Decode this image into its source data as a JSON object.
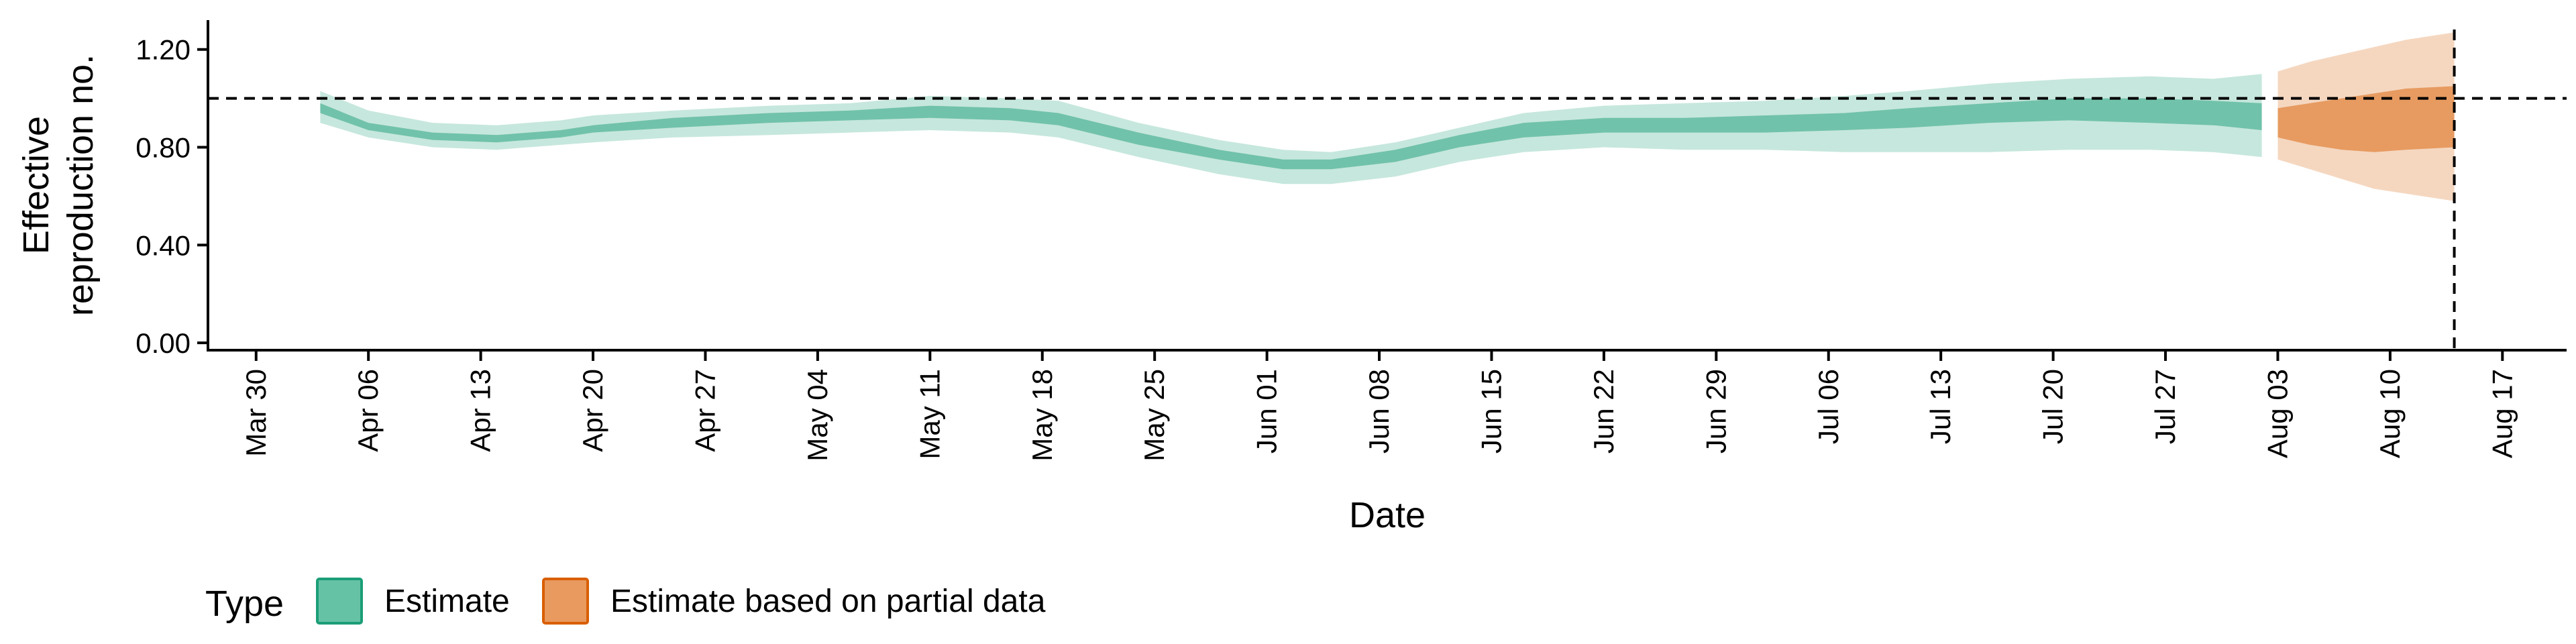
{
  "chart_data": {
    "type": "area",
    "xlabel": "Date",
    "ylabel_lines": [
      "Effective",
      "reproduction no."
    ],
    "xlim": [
      "2020-03-27",
      "2020-08-21"
    ],
    "ylim": [
      -0.03,
      1.32
    ],
    "yticks": [
      0.0,
      0.4,
      0.8,
      1.2
    ],
    "ytick_labels": [
      "0.00",
      "0.40",
      "0.80",
      "1.20"
    ],
    "xticks": [
      "2020-03-30",
      "2020-04-06",
      "2020-04-13",
      "2020-04-20",
      "2020-04-27",
      "2020-05-04",
      "2020-05-11",
      "2020-05-18",
      "2020-05-25",
      "2020-06-01",
      "2020-06-08",
      "2020-06-15",
      "2020-06-22",
      "2020-06-29",
      "2020-07-06",
      "2020-07-13",
      "2020-07-20",
      "2020-07-27",
      "2020-08-03",
      "2020-08-10",
      "2020-08-17"
    ],
    "xtick_labels": [
      "Mar 30",
      "Apr 06",
      "Apr 13",
      "Apr 20",
      "Apr 27",
      "May 04",
      "May 11",
      "May 18",
      "May 25",
      "Jun 01",
      "Jun 08",
      "Jun 15",
      "Jun 22",
      "Jun 29",
      "Jul 06",
      "Jul 13",
      "Jul 20",
      "Jul 27",
      "Aug 03",
      "Aug 10",
      "Aug 17"
    ],
    "reference_line_y": 1.0,
    "reference_line_x": "2020-08-14",
    "grid": false,
    "legend": {
      "position": "bottom-left",
      "title": "Type",
      "entries": [
        {
          "label": "Estimate",
          "fill": "#66c2a5",
          "stroke": "#1b9e77"
        },
        {
          "label": "Estimate based on partial data",
          "fill": "#e89a5f",
          "stroke": "#d95f02"
        }
      ]
    },
    "series": [
      {
        "name": "Estimate",
        "outer_color": "#1b9e77",
        "inner_color": "#1b9e77",
        "x": [
          "2020-04-03",
          "2020-04-06",
          "2020-04-10",
          "2020-04-14",
          "2020-04-18",
          "2020-04-20",
          "2020-04-25",
          "2020-05-01",
          "2020-05-06",
          "2020-05-11",
          "2020-05-16",
          "2020-05-19",
          "2020-05-24",
          "2020-05-29",
          "2020-06-02",
          "2020-06-05",
          "2020-06-09",
          "2020-06-13",
          "2020-06-17",
          "2020-06-22",
          "2020-06-27",
          "2020-07-02",
          "2020-07-07",
          "2020-07-11",
          "2020-07-16",
          "2020-07-21",
          "2020-07-26",
          "2020-07-30",
          "2020-08-02"
        ],
        "lower_90": [
          0.9,
          0.84,
          0.8,
          0.79,
          0.81,
          0.82,
          0.84,
          0.85,
          0.86,
          0.87,
          0.86,
          0.84,
          0.76,
          0.69,
          0.65,
          0.65,
          0.68,
          0.74,
          0.78,
          0.8,
          0.79,
          0.79,
          0.78,
          0.78,
          0.78,
          0.79,
          0.79,
          0.78,
          0.76
        ],
        "lower_50": [
          0.94,
          0.87,
          0.83,
          0.82,
          0.84,
          0.86,
          0.88,
          0.9,
          0.91,
          0.92,
          0.91,
          0.89,
          0.81,
          0.75,
          0.71,
          0.71,
          0.74,
          0.8,
          0.84,
          0.86,
          0.86,
          0.86,
          0.87,
          0.88,
          0.9,
          0.91,
          0.9,
          0.89,
          0.87
        ],
        "median": [
          0.96,
          0.88,
          0.84,
          0.83,
          0.85,
          0.87,
          0.9,
          0.92,
          0.93,
          0.95,
          0.94,
          0.92,
          0.83,
          0.77,
          0.73,
          0.72,
          0.76,
          0.82,
          0.87,
          0.89,
          0.89,
          0.89,
          0.9,
          0.92,
          0.94,
          0.95,
          0.95,
          0.93,
          0.92
        ],
        "upper_50": [
          0.98,
          0.9,
          0.86,
          0.85,
          0.87,
          0.89,
          0.92,
          0.94,
          0.95,
          0.97,
          0.96,
          0.94,
          0.86,
          0.79,
          0.75,
          0.75,
          0.79,
          0.85,
          0.9,
          0.92,
          0.92,
          0.93,
          0.94,
          0.96,
          0.98,
          1.0,
          1.0,
          0.99,
          0.98
        ],
        "upper_90": [
          1.03,
          0.95,
          0.9,
          0.89,
          0.91,
          0.93,
          0.95,
          0.97,
          0.98,
          1.01,
          1.0,
          0.99,
          0.9,
          0.83,
          0.79,
          0.78,
          0.82,
          0.88,
          0.94,
          0.97,
          0.98,
          0.99,
          1.01,
          1.03,
          1.06,
          1.08,
          1.09,
          1.08,
          1.1
        ]
      },
      {
        "name": "Estimate based on partial data",
        "outer_color": "#d95f02",
        "inner_color": "#d95f02",
        "x": [
          "2020-08-03",
          "2020-08-05",
          "2020-08-07",
          "2020-08-09",
          "2020-08-11",
          "2020-08-14"
        ],
        "lower_90": [
          0.75,
          0.71,
          0.67,
          0.63,
          0.61,
          0.58
        ],
        "lower_50": [
          0.84,
          0.81,
          0.79,
          0.78,
          0.79,
          0.8
        ],
        "median": [
          0.9,
          0.9,
          0.9,
          0.91,
          0.92,
          0.93
        ],
        "upper_50": [
          0.96,
          0.98,
          1.0,
          1.02,
          1.04,
          1.05
        ],
        "upper_90": [
          1.11,
          1.15,
          1.18,
          1.21,
          1.24,
          1.27
        ]
      }
    ]
  }
}
